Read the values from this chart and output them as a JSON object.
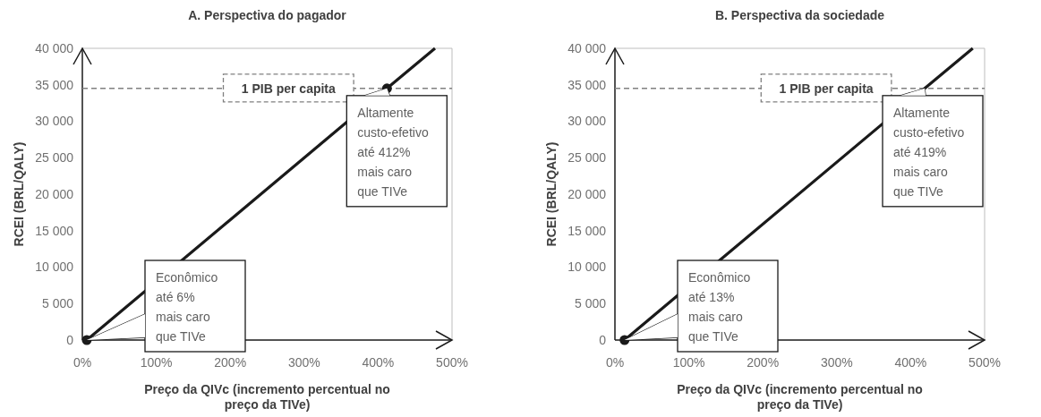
{
  "chart_data": [
    {
      "type": "line",
      "title": "A. Perspectiva do pagador",
      "xlabel": "Preço da QIVc (incremento percentual no preço da TIVe)",
      "ylabel": "RCEI (BRL/QALY)",
      "xlim": [
        0,
        500
      ],
      "ylim": [
        0,
        40000
      ],
      "xticks": [
        {
          "value": 0,
          "label": "0%"
        },
        {
          "value": 100,
          "label": "100%"
        },
        {
          "value": 200,
          "label": "200%"
        },
        {
          "value": 300,
          "label": "300%"
        },
        {
          "value": 400,
          "label": "400%"
        },
        {
          "value": 500,
          "label": "500%"
        }
      ],
      "yticks": [
        0,
        {
          "value": 5000,
          "label": "5 000"
        },
        {
          "value": 10000,
          "label": "10 000"
        },
        {
          "value": 15000,
          "label": "15 000"
        },
        {
          "value": 20000,
          "label": "20 000"
        },
        {
          "value": 25000,
          "label": "25 000"
        },
        {
          "value": 30000,
          "label": "30 000"
        },
        {
          "value": 35000,
          "label": "35 000"
        },
        {
          "value": 40000,
          "label": "40 000"
        }
      ],
      "grid": false,
      "series": [
        {
          "color": "#1a1a1a",
          "marker": "none",
          "x": [
            6,
            412,
            477
          ],
          "values": [
            0,
            34500,
            40000
          ]
        },
        {
          "type": "scatter",
          "marker": "circle",
          "color": "#1a1a1a",
          "x": [
            6,
            412
          ],
          "values": [
            0,
            34500
          ]
        }
      ],
      "ref_lines": [
        {
          "axis": "y",
          "value": 34500,
          "label": "1 PIB per capita",
          "color": "#808080",
          "line_style": "dashed"
        }
      ],
      "annotations": [
        {
          "text": "Econômico até 6% mais caro que TIVe",
          "x": 6,
          "y": 0
        },
        {
          "text": "Altamente custo-efetivo até 412% mais caro que TIVe",
          "x": 412,
          "y": 34500
        }
      ]
    },
    {
      "type": "line",
      "title": "B. Perspectiva da sociedade",
      "xlabel": "Preço da QIVc (incremento percentual no preço da TIVe)",
      "ylabel": "RCEI (BRL/QALY)",
      "xlim": [
        0,
        500
      ],
      "ylim": [
        0,
        40000
      ],
      "xticks": [
        {
          "value": 0,
          "label": "0%"
        },
        {
          "value": 100,
          "label": "100%"
        },
        {
          "value": 200,
          "label": "200%"
        },
        {
          "value": 300,
          "label": "300%"
        },
        {
          "value": 400,
          "label": "400%"
        },
        {
          "value": 500,
          "label": "500%"
        }
      ],
      "yticks": [
        0,
        {
          "value": 5000,
          "label": "5 000"
        },
        {
          "value": 10000,
          "label": "10 000"
        },
        {
          "value": 15000,
          "label": "15 000"
        },
        {
          "value": 20000,
          "label": "20 000"
        },
        {
          "value": 25000,
          "label": "25 000"
        },
        {
          "value": 30000,
          "label": "30 000"
        },
        {
          "value": 35000,
          "label": "35 000"
        },
        {
          "value": 40000,
          "label": "40 000"
        }
      ],
      "grid": false,
      "series": [
        {
          "color": "#1a1a1a",
          "marker": "none",
          "x": [
            13,
            419,
            484
          ],
          "values": [
            0,
            34500,
            40000
          ]
        },
        {
          "type": "scatter",
          "marker": "circle",
          "color": "#1a1a1a",
          "x": [
            13
          ],
          "values": [
            0
          ]
        }
      ],
      "ref_lines": [
        {
          "axis": "y",
          "value": 34500,
          "label": "1 PIB per capita",
          "color": "#808080",
          "line_style": "dashed"
        }
      ],
      "annotations": [
        {
          "text": "Econômico até 13% mais caro que TIVe",
          "x": 13,
          "y": 0
        },
        {
          "text": "Altamente custo-efetivo até 419% mais caro que TIVe",
          "x": 419,
          "y": 34500
        }
      ]
    }
  ]
}
